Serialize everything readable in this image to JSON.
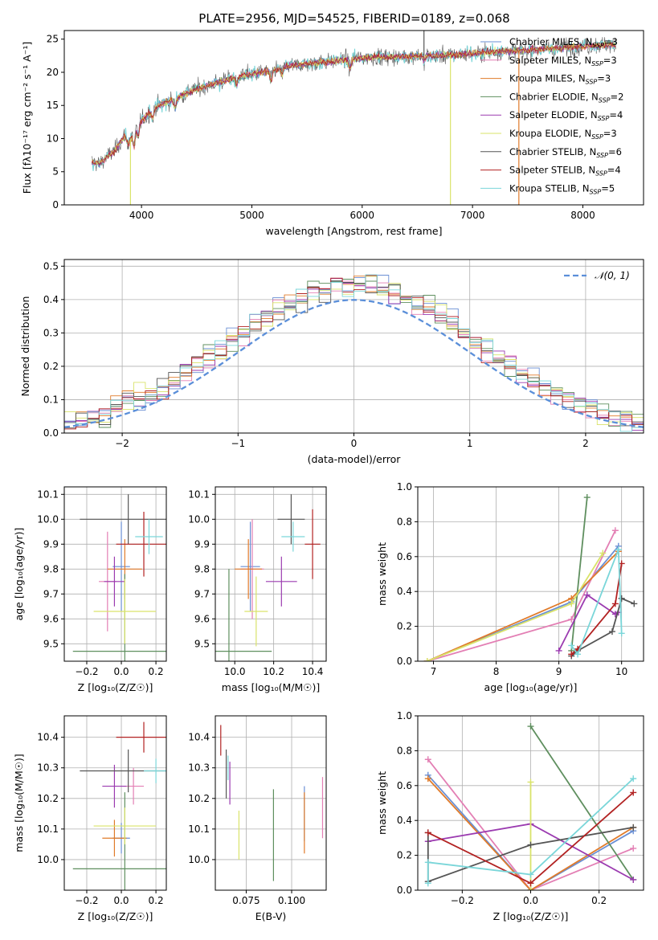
{
  "figure_title": "PLATE=2956, MJD=54525, FIBERID=0189, z=0.068",
  "colors": {
    "Chabrier MILES": "#6a8fd4",
    "Salpeter MILES": "#e37fb4",
    "Kroupa MILES": "#e07b2a",
    "Chabrier ELODIE": "#5f8f5f",
    "Salpeter ELODIE": "#9b3bb0",
    "Kroupa ELODIE": "#d9e36a",
    "Chabrier STELIB": "#555555",
    "Salpeter STELIB": "#b22222",
    "Kroupa STELIB": "#7ad6d9",
    "normal": "#5b8fd9"
  },
  "chart_data": [
    {
      "id": "spectrum",
      "type": "line",
      "xlabel": "wavelength [Angstrom, rest frame]",
      "ylabel": "Flux [fλ10⁻¹⁷ erg cm⁻² s⁻¹ A⁻¹]",
      "xlim": [
        3300,
        8550
      ],
      "ylim": [
        0,
        26.3
      ],
      "xticks": [
        4000,
        5000,
        6000,
        7000,
        8000
      ],
      "yticks": [
        0,
        5,
        10,
        15,
        20,
        25
      ],
      "grid": false,
      "legend_position": "top-right",
      "legend": [
        {
          "label": "Chabrier MILES, N",
          "sub": "SSP",
          "suffix": "=3",
          "color_key": "Chabrier MILES"
        },
        {
          "label": "Salpeter MILES, N",
          "sub": "SSP",
          "suffix": "=3",
          "color_key": "Salpeter MILES"
        },
        {
          "label": "Kroupa MILES, N",
          "sub": "SSP",
          "suffix": "=3",
          "color_key": "Kroupa MILES"
        },
        {
          "label": "Chabrier ELODIE, N",
          "sub": "SSP",
          "suffix": "=2",
          "color_key": "Chabrier ELODIE"
        },
        {
          "label": "Salpeter ELODIE, N",
          "sub": "SSP",
          "suffix": "=4",
          "color_key": "Salpeter ELODIE"
        },
        {
          "label": "Kroupa ELODIE, N",
          "sub": "SSP",
          "suffix": "=3",
          "color_key": "Kroupa ELODIE"
        },
        {
          "label": "Chabrier STELIB, N",
          "sub": "SSP",
          "suffix": "=6",
          "color_key": "Chabrier STELIB"
        },
        {
          "label": "Salpeter STELIB, N",
          "sub": "SSP",
          "suffix": "=4",
          "color_key": "Salpeter STELIB"
        },
        {
          "label": "Kroupa STELIB, N",
          "sub": "SSP",
          "suffix": "=5",
          "color_key": "Kroupa STELIB"
        }
      ],
      "continuum": {
        "wavelength": [
          3550,
          3620,
          3700,
          3750,
          3850,
          3880,
          3950,
          4050,
          4150,
          4300,
          4500,
          4700,
          4900,
          5100,
          5300,
          5500,
          5700,
          5900,
          6100,
          6300,
          6500,
          6700,
          6900,
          7100,
          7300,
          7500,
          7700,
          7900,
          8100,
          8300
        ],
        "flux": [
          6.5,
          6.2,
          7.5,
          8.0,
          10.5,
          9.0,
          12.0,
          13.5,
          15.0,
          16.0,
          17.5,
          18.5,
          19.5,
          20.0,
          20.8,
          21.3,
          21.6,
          22.0,
          22.3,
          22.3,
          22.5,
          22.5,
          22.7,
          23.0,
          23.2,
          23.3,
          23.6,
          23.8,
          24.0,
          24.2
        ]
      },
      "model_wavelength_range": [
        3550,
        8300
      ],
      "spikes": [
        {
          "wavelength": 3900,
          "color_key": "Kroupa ELODIE"
        },
        {
          "wavelength": 6800,
          "color_key": "Kroupa ELODIE"
        },
        {
          "wavelength": 7420,
          "color_key": "Kroupa MILES"
        },
        {
          "wavelength": 6560,
          "color_key": "Chabrier STELIB",
          "direction": "up"
        }
      ]
    },
    {
      "id": "residual-histogram",
      "type": "line",
      "xlabel": "(data-model)/error",
      "ylabel": "Normed distribution",
      "xlim": [
        -2.5,
        2.5
      ],
      "ylim": [
        0,
        0.52
      ],
      "xticks": [
        -2,
        -1,
        0,
        1,
        2
      ],
      "yticks": [
        0,
        0.1,
        0.2,
        0.3,
        0.4,
        0.5
      ],
      "grid": true,
      "legend_position": "top-right",
      "legend": [
        {
          "label": "𝒩(0, 1)",
          "color_key": "normal",
          "dashed": true
        }
      ],
      "bin_width": 0.1,
      "series_order": [
        "Chabrier MILES",
        "Salpeter MILES",
        "Kroupa MILES",
        "Chabrier ELODIE",
        "Salpeter ELODIE",
        "Kroupa ELODIE",
        "Chabrier STELIB",
        "Salpeter STELIB",
        "Kroupa STELIB"
      ]
    },
    {
      "id": "z-vs-age",
      "type": "scatter",
      "xlabel": "Z [log₁₀(Z/Z☉)]",
      "ylabel": "age  [log₁₀(age/yr)]",
      "xlim": [
        -0.33,
        0.26
      ],
      "ylim": [
        9.43,
        10.13
      ],
      "xticks": [
        -0.2,
        0.0,
        0.2
      ],
      "yticks": [
        9.5,
        9.6,
        9.7,
        9.8,
        9.9,
        10.0,
        10.1
      ],
      "grid": true,
      "points": [
        {
          "color_key": "Chabrier MILES",
          "x": 0.0,
          "xerr": 0.05,
          "y": 9.81,
          "yerr": 0.18
        },
        {
          "color_key": "Salpeter MILES",
          "x": -0.08,
          "xerr": 0.05,
          "y": 9.75,
          "yerr": 0.2
        },
        {
          "color_key": "Kroupa MILES",
          "x": 0.02,
          "xerr": 0.1,
          "y": 9.8,
          "yerr": 0.12
        },
        {
          "color_key": "Chabrier ELODIE",
          "x": 0.02,
          "xerr": 0.3,
          "y": 9.47,
          "yerr": 0.31
        },
        {
          "color_key": "Salpeter ELODIE",
          "x": -0.04,
          "xerr": 0.06,
          "y": 9.75,
          "yerr": 0.1
        },
        {
          "color_key": "Kroupa ELODIE",
          "x": 0.02,
          "xerr": 0.18,
          "y": 9.63,
          "yerr": 0.13
        },
        {
          "color_key": "Chabrier STELIB",
          "x": 0.04,
          "xerr": 0.28,
          "y": 10.0,
          "yerr": 0.1
        },
        {
          "color_key": "Salpeter STELIB",
          "x": 0.13,
          "xerr": 0.16,
          "y": 9.9,
          "yerr": 0.13
        },
        {
          "color_key": "Kroupa STELIB",
          "x": 0.16,
          "xerr": 0.08,
          "y": 9.93,
          "yerr": 0.07
        }
      ]
    },
    {
      "id": "mass-vs-age",
      "type": "scatter",
      "xlabel": "mass [log₁₀(M/M☉)]",
      "ylabel": "",
      "xlim": [
        9.9,
        10.47
      ],
      "ylim": [
        9.43,
        10.13
      ],
      "xticks": [
        10.0,
        10.2,
        10.4
      ],
      "yticks": [
        9.5,
        9.6,
        9.7,
        9.8,
        9.9,
        10.0,
        10.1
      ],
      "grid": true,
      "points": [
        {
          "color_key": "Chabrier MILES",
          "x": 10.08,
          "xerr": 0.05,
          "y": 9.81,
          "yerr": 0.18
        },
        {
          "color_key": "Salpeter MILES",
          "x": 10.09,
          "xerr": 0.06,
          "y": 9.8,
          "yerr": 0.2
        },
        {
          "color_key": "Kroupa MILES",
          "x": 10.07,
          "xerr": 0.07,
          "y": 9.8,
          "yerr": 0.12
        },
        {
          "color_key": "Chabrier ELODIE",
          "x": 9.97,
          "xerr": 0.22,
          "y": 9.47,
          "yerr": 0.33
        },
        {
          "color_key": "Salpeter ELODIE",
          "x": 10.24,
          "xerr": 0.08,
          "y": 9.75,
          "yerr": 0.1
        },
        {
          "color_key": "Kroupa ELODIE",
          "x": 10.11,
          "xerr": 0.06,
          "y": 9.63,
          "yerr": 0.14
        },
        {
          "color_key": "Chabrier STELIB",
          "x": 10.29,
          "xerr": 0.07,
          "y": 10.0,
          "yerr": 0.1
        },
        {
          "color_key": "Salpeter STELIB",
          "x": 10.4,
          "xerr": 0.04,
          "y": 9.9,
          "yerr": 0.14
        },
        {
          "color_key": "Kroupa STELIB",
          "x": 10.3,
          "xerr": 0.06,
          "y": 9.93,
          "yerr": 0.06
        }
      ]
    },
    {
      "id": "age-vs-weight",
      "type": "line",
      "xlabel": "age  [log₁₀(age/yr)]",
      "ylabel": "mass weight",
      "xlim": [
        6.75,
        10.35
      ],
      "ylim": [
        0,
        1.0
      ],
      "xticks": [
        7,
        8,
        9,
        10
      ],
      "yticks": [
        0.0,
        0.2,
        0.4,
        0.6,
        0.8,
        1.0
      ],
      "grid": true,
      "series": [
        {
          "color_key": "Chabrier MILES",
          "x": [
            6.9,
            9.2,
            9.95
          ],
          "y": [
            0.0,
            0.34,
            0.66
          ]
        },
        {
          "color_key": "Salpeter MILES",
          "x": [
            6.9,
            9.2,
            9.9
          ],
          "y": [
            0.0,
            0.24,
            0.75
          ]
        },
        {
          "color_key": "Kroupa MILES",
          "x": [
            6.9,
            9.2,
            9.95
          ],
          "y": [
            0.0,
            0.36,
            0.63
          ]
        },
        {
          "color_key": "Chabrier ELODIE",
          "x": [
            9.2,
            9.45
          ],
          "y": [
            0.06,
            0.94
          ]
        },
        {
          "color_key": "Salpeter ELODIE",
          "x": [
            9.0,
            9.45,
            9.9,
            9.95
          ],
          "y": [
            0.06,
            0.38,
            0.27,
            0.28
          ]
        },
        {
          "color_key": "Kroupa ELODIE",
          "x": [
            6.9,
            9.2,
            9.7
          ],
          "y": [
            0.0,
            0.33,
            0.62
          ]
        },
        {
          "color_key": "Chabrier STELIB",
          "x": [
            9.2,
            9.3,
            9.85,
            10.0,
            10.2
          ],
          "y": [
            0.03,
            0.06,
            0.17,
            0.36,
            0.33
          ]
        },
        {
          "color_key": "Salpeter STELIB",
          "x": [
            9.2,
            9.3,
            9.9,
            10.0
          ],
          "y": [
            0.04,
            0.07,
            0.33,
            0.56
          ]
        },
        {
          "color_key": "Kroupa STELIB",
          "x": [
            9.2,
            9.3,
            9.95,
            10.0
          ],
          "y": [
            0.09,
            0.04,
            0.64,
            0.16
          ]
        }
      ]
    },
    {
      "id": "mass-vs-mass-z",
      "type": "scatter",
      "xlabel": "Z [log₁₀(Z/Z☉)]",
      "ylabel": "mass [log₁₀(M/M☉)]",
      "xlim": [
        -0.33,
        0.26
      ],
      "ylim": [
        9.9,
        10.47
      ],
      "xticks": [
        -0.2,
        0.0,
        0.2
      ],
      "yticks": [
        10.0,
        10.1,
        10.2,
        10.3,
        10.4
      ],
      "grid": true,
      "points": [
        {
          "color_key": "Chabrier MILES",
          "x": 0.0,
          "xerr": 0.05,
          "y": 10.07,
          "yerr": 0.05
        },
        {
          "color_key": "Salpeter MILES",
          "x": 0.07,
          "xerr": 0.06,
          "y": 10.24,
          "yerr": 0.06
        },
        {
          "color_key": "Kroupa MILES",
          "x": -0.04,
          "xerr": 0.07,
          "y": 10.07,
          "yerr": 0.06
        },
        {
          "color_key": "Chabrier ELODIE",
          "x": 0.02,
          "xerr": 0.3,
          "y": 9.97,
          "yerr": 0.25
        },
        {
          "color_key": "Salpeter ELODIE",
          "x": -0.04,
          "xerr": 0.07,
          "y": 10.24,
          "yerr": 0.07
        },
        {
          "color_key": "Kroupa ELODIE",
          "x": 0.02,
          "xerr": 0.18,
          "y": 10.11,
          "yerr": 0.06
        },
        {
          "color_key": "Chabrier STELIB",
          "x": 0.04,
          "xerr": 0.28,
          "y": 10.29,
          "yerr": 0.07
        },
        {
          "color_key": "Salpeter STELIB",
          "x": 0.13,
          "xerr": 0.16,
          "y": 10.4,
          "yerr": 0.05
        },
        {
          "color_key": "Kroupa STELIB",
          "x": 0.2,
          "xerr": 0.07,
          "y": 10.29,
          "yerr": 0.04
        }
      ]
    },
    {
      "id": "ebv-vs-mass",
      "type": "scatter",
      "xlabel": "E(B-V)",
      "ylabel": "",
      "xlim": [
        0.058,
        0.119
      ],
      "ylim": [
        9.9,
        10.47
      ],
      "xticks": [
        0.075,
        0.1
      ],
      "xticklabels": [
        "0.075",
        "0.100"
      ],
      "yticks": [
        10.0,
        10.1,
        10.2,
        10.3,
        10.4
      ],
      "grid": true,
      "points": [
        {
          "color_key": "Chabrier MILES",
          "x": 0.107,
          "y": 10.15,
          "yerr": 0.09
        },
        {
          "color_key": "Salpeter MILES",
          "x": 0.117,
          "y": 10.17,
          "yerr": 0.1
        },
        {
          "color_key": "Kroupa MILES",
          "x": 0.107,
          "y": 10.12,
          "yerr": 0.1
        },
        {
          "color_key": "Chabrier ELODIE",
          "x": 0.09,
          "y": 10.08,
          "yerr": 0.15
        },
        {
          "color_key": "Salpeter ELODIE",
          "x": 0.066,
          "y": 10.25,
          "yerr": 0.07
        },
        {
          "color_key": "Kroupa ELODIE",
          "x": 0.071,
          "y": 10.08,
          "yerr": 0.08
        },
        {
          "color_key": "Chabrier STELIB",
          "x": 0.064,
          "y": 10.28,
          "yerr": 0.08
        },
        {
          "color_key": "Salpeter STELIB",
          "x": 0.061,
          "y": 10.39,
          "yerr": 0.05
        },
        {
          "color_key": "Kroupa STELIB",
          "x": 0.065,
          "y": 10.3,
          "yerr": 0.04
        }
      ]
    },
    {
      "id": "z-vs-weight",
      "type": "line",
      "xlabel": "Z [log₁₀(Z/Z☉)]",
      "ylabel": "mass weight",
      "xlim": [
        -0.33,
        0.33
      ],
      "ylim": [
        0,
        1.0
      ],
      "xticks": [
        -0.2,
        0.0,
        0.2
      ],
      "yticks": [
        0.0,
        0.2,
        0.4,
        0.6,
        0.8,
        1.0
      ],
      "grid": true,
      "series": [
        {
          "color_key": "Chabrier MILES",
          "x": [
            -0.3,
            0.0,
            0.3
          ],
          "y": [
            0.66,
            0.0,
            0.34
          ]
        },
        {
          "color_key": "Salpeter MILES",
          "x": [
            -0.3,
            0.0,
            0.3
          ],
          "y": [
            0.75,
            0.0,
            0.24
          ]
        },
        {
          "color_key": "Kroupa MILES",
          "x": [
            -0.3,
            0.0,
            0.3
          ],
          "y": [
            0.64,
            0.0,
            0.36
          ]
        },
        {
          "color_key": "Chabrier ELODIE",
          "x": [
            0.0,
            0.3
          ],
          "y": [
            0.94,
            0.06
          ]
        },
        {
          "color_key": "Salpeter ELODIE",
          "x": [
            -0.3,
            0.0,
            0.3
          ],
          "y": [
            0.28,
            0.38,
            0.06
          ]
        },
        {
          "color_key": "Kroupa ELODIE",
          "x": [
            0.0,
            0.0
          ],
          "y": [
            0.62,
            0.0
          ]
        },
        {
          "color_key": "Chabrier STELIB",
          "x": [
            -0.3,
            -0.3,
            0.0,
            0.3
          ],
          "y": [
            0.33,
            0.05,
            0.26,
            0.36
          ]
        },
        {
          "color_key": "Salpeter STELIB",
          "x": [
            -0.3,
            0.0,
            0.3
          ],
          "y": [
            0.33,
            0.04,
            0.56
          ]
        },
        {
          "color_key": "Kroupa STELIB",
          "x": [
            -0.3,
            -0.3,
            0.0,
            0.3
          ],
          "y": [
            0.04,
            0.16,
            0.09,
            0.64
          ]
        }
      ]
    }
  ]
}
